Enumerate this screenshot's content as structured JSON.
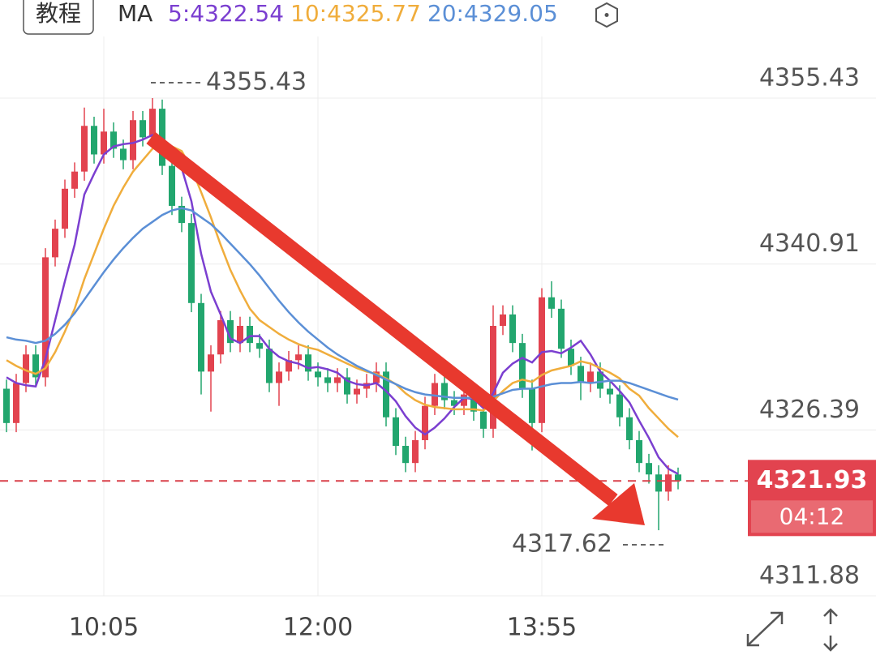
{
  "header": {
    "tutorial_button": "教程",
    "ma_label": "MA",
    "ma_values": [
      "5:4322.54",
      "10:4325.77",
      "20:4329.05"
    ]
  },
  "chart_data": {
    "type": "candlestick",
    "categories": [
      null,
      null,
      null,
      null,
      null,
      null,
      null,
      null,
      null,
      null,
      "10:05",
      null,
      null,
      null,
      null,
      null,
      null,
      null,
      null,
      null,
      null,
      null,
      null,
      null,
      null,
      null,
      null,
      null,
      null,
      null,
      null,
      null,
      "12:00",
      null,
      null,
      null,
      null,
      null,
      null,
      null,
      null,
      null,
      null,
      null,
      null,
      null,
      null,
      null,
      null,
      null,
      null,
      null,
      null,
      null,
      null,
      "13:55",
      null,
      null,
      null,
      null,
      null,
      null,
      null,
      null,
      null,
      null,
      null,
      null,
      null,
      null
    ],
    "open": [
      4330,
      4327,
      4330.5,
      4333,
      4331,
      4341.5,
      4344,
      4347.5,
      4349,
      4353,
      4350.5,
      4352.5,
      4351,
      4350,
      4353.5,
      4352,
      4354.5,
      4349.5,
      4346,
      4344.5,
      4337.5,
      4331.5,
      4333,
      4336,
      4334,
      4335.5,
      4334,
      4333.5,
      4330.5,
      4331.5,
      4332.5,
      4333,
      4331.5,
      4331,
      4330.5,
      4331,
      4329.5,
      4330,
      4330.5,
      4331.5,
      4327.5,
      4325,
      4323.5,
      4325.5,
      4328.5,
      4330.5,
      4329,
      4328.5,
      4329.5,
      4328,
      4326.5,
      4335.5,
      4336.5,
      4334,
      4330,
      4327,
      4338,
      4337,
      4333.5,
      4332,
      4330.5,
      4331.5,
      4330,
      4329.5,
      4327.5,
      4325.5,
      4323.5,
      4322.5,
      4321,
      4322.5
    ],
    "high": [
      4330.8,
      4331.3,
      4333.8,
      4333.8,
      4342.3,
      4344.8,
      4348.3,
      4349.8,
      4354.6,
      4353.8,
      4354.5,
      4353.3,
      4351.8,
      4354.3,
      4354.3,
      4355.43,
      4355.3,
      4350.3,
      4346.8,
      4345.3,
      4338.3,
      4333.8,
      4336.8,
      4336.8,
      4336.3,
      4336.3,
      4334.8,
      4334.3,
      4332.3,
      4333.3,
      4333.8,
      4333.8,
      4332.3,
      4331.8,
      4331.8,
      4331.8,
      4330.8,
      4331.3,
      4332.3,
      4332.3,
      4328.3,
      4325.8,
      4326.3,
      4329.3,
      4331.3,
      4331.3,
      4329.8,
      4330.3,
      4330.3,
      4328.8,
      4337.3,
      4337.3,
      4337.3,
      4334.8,
      4330.8,
      4338.8,
      4339.4,
      4337.8,
      4334.3,
      4332.8,
      4332.3,
      4332.3,
      4330.8,
      4330.3,
      4328.3,
      4326.3,
      4324.3,
      4323.3,
      4323.3,
      4323.1
    ],
    "low": [
      4326.2,
      4326.2,
      4329.7,
      4330.2,
      4330.2,
      4340.7,
      4343.2,
      4346.7,
      4348.2,
      4349.7,
      4349.7,
      4350.2,
      4349.2,
      4349.2,
      4351.2,
      4351.2,
      4348.7,
      4345.2,
      4343.7,
      4336.7,
      4329.5,
      4328,
      4332.2,
      4333.2,
      4333.2,
      4333.2,
      4332.7,
      4329.7,
      4328.5,
      4330.7,
      4331.7,
      4330.7,
      4330.2,
      4329.7,
      4329.7,
      4328.7,
      4328.7,
      4329.2,
      4329.7,
      4326.7,
      4324.2,
      4322.7,
      4322.7,
      4324.7,
      4327.7,
      4328.2,
      4327.7,
      4327.7,
      4327.2,
      4325.7,
      4325.7,
      4334.7,
      4333.2,
      4329.2,
      4324.6,
      4326.2,
      4336.2,
      4332.7,
      4331.2,
      4329,
      4329.7,
      4329.2,
      4328.7,
      4326.7,
      4324.7,
      4322.7,
      4321.7,
      4317.62,
      4320.2,
      4321.2
    ],
    "close": [
      4327,
      4330.5,
      4333,
      4331,
      4341.5,
      4344,
      4347.5,
      4349,
      4353,
      4350.5,
      4352.5,
      4351,
      4350,
      4353.5,
      4352,
      4354.5,
      4349.5,
      4346,
      4344.5,
      4337.5,
      4331.5,
      4333,
      4336,
      4334,
      4335.5,
      4334,
      4333.5,
      4330.5,
      4331.5,
      4332.5,
      4333,
      4331.5,
      4331,
      4330.5,
      4331,
      4329.5,
      4330,
      4330.5,
      4331.5,
      4327.5,
      4325,
      4323.5,
      4325.5,
      4328.5,
      4330.5,
      4329,
      4328.5,
      4329.5,
      4328,
      4326.5,
      4335.5,
      4336.5,
      4334,
      4330,
      4327,
      4338,
      4337,
      4333.5,
      4332,
      4330.5,
      4331.5,
      4330,
      4329.5,
      4327.5,
      4325.5,
      4323.5,
      4322.5,
      4321,
      4322.5,
      4321.93
    ],
    "up_color": "#e2434f",
    "down_color": "#22a66e",
    "series": [
      {
        "color": "#7b3fd0",
        "values": [
          4331,
          4330.5,
          4330.3,
          4330.2,
          4332.6,
          4336,
          4339.4,
          4342.6,
          4347,
          4348.8,
          4350.5,
          4351.2,
          4351.4,
          4351.5,
          4351.8,
          4352.2,
          4351.9,
          4351.1,
          4349.3,
          4346.4,
          4341.8,
          4338.5,
          4336.5,
          4334.4,
          4334,
          4334.6,
          4334.6,
          4333.5,
          4332.8,
          4332.4,
          4332.2,
          4331.8,
          4331.9,
          4331.7,
          4331.4,
          4330.7,
          4330.4,
          4330.3,
          4330.5,
          4329.8,
          4328.9,
          4327.6,
          4326.6,
          4326,
          4326.6,
          4327.4,
          4328.4,
          4329.2,
          4329.1,
          4328.3,
          4329.6,
          4331.4,
          4332.2,
          4332.7,
          4332.3,
          4333.2,
          4333.3,
          4333.1,
          4333.6,
          4334.2,
          4333,
          4331.5,
          4330.7,
          4329.8,
          4328.8,
          4327.2,
          4325.7,
          4324,
          4323,
          4322.54
        ]
      },
      {
        "color": "#f0ad3c",
        "values": [
          4332.5,
          4332,
          4331.6,
          4331.3,
          4331.8,
          4333.2,
          4335,
          4337,
          4339.6,
          4341.8,
          4344,
          4346,
          4347.6,
          4349,
          4350,
          4351,
          4351.3,
          4351.2,
          4350.8,
          4349.3,
          4347.2,
          4345,
          4342.6,
          4340.4,
          4338.6,
          4337,
          4336,
          4335.4,
          4334.8,
          4334.3,
          4333.9,
          4333.6,
          4333.4,
          4333,
          4332.6,
          4332.2,
          4331.8,
          4331.5,
          4331.3,
          4330.9,
          4330.4,
          4329.6,
          4329,
          4328.6,
          4328.4,
          4328.3,
          4328.2,
          4328.2,
          4328.2,
          4328.1,
          4328.9,
          4329.8,
          4330.5,
          4330.8,
          4330.6,
          4331.2,
          4331.6,
          4331.8,
          4332,
          4332.4,
          4332.2,
          4331.8,
          4331.4,
          4330.9,
          4330,
          4329.4,
          4328.3,
          4327.4,
          4326.5,
          4325.77
        ]
      },
      {
        "color": "#5b8fd6",
        "values": [
          4334.5,
          4334.3,
          4334.2,
          4334,
          4334.2,
          4334.8,
          4335.6,
          4336.6,
          4337.8,
          4339,
          4340.2,
          4341.3,
          4342.3,
          4343.2,
          4344,
          4344.6,
          4345.2,
          4345.6,
          4345.8,
          4345.6,
          4345,
          4344.4,
          4343.6,
          4342.7,
          4341.8,
          4340.9,
          4339.9,
          4338.8,
          4337.7,
          4336.7,
          4335.8,
          4335,
          4334.3,
          4333.6,
          4333,
          4332.5,
          4332,
          4331.6,
          4331.2,
          4330.8,
          4330.4,
          4330,
          4329.7,
          4329.5,
          4329.4,
          4329.3,
          4329.2,
          4329.2,
          4329.2,
          4329.1,
          4329.3,
          4329.6,
          4329.9,
          4330,
          4330,
          4330.2,
          4330.4,
          4330.5,
          4330.5,
          4330.6,
          4330.5,
          4330.6,
          4330.7,
          4330.7,
          4330.5,
          4330.2,
          4329.9,
          4329.6,
          4329.3,
          4329.05
        ]
      }
    ],
    "ylim": [
      4311.88,
      4355.43
    ],
    "yticks": [
      4311.88,
      4326.39,
      4340.91,
      4355.43
    ],
    "grid": true,
    "max_label": 4355.43,
    "min_label": 4317.62,
    "last_price": 4321.93,
    "countdown": "04:12"
  }
}
